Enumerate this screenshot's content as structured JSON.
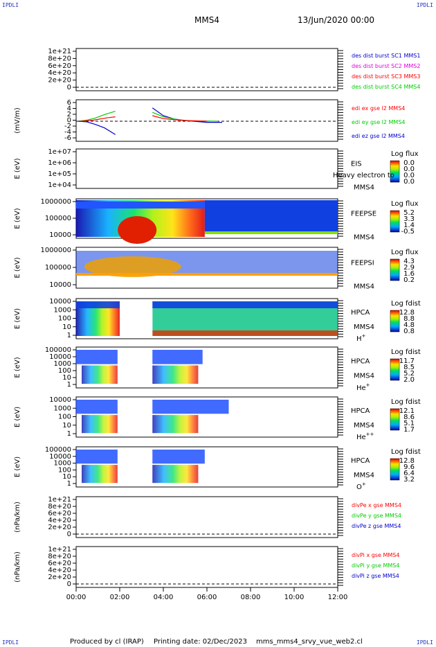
{
  "corners": {
    "tl": "IPDLI",
    "tr": "IPDLI",
    "bl": "IPDLI",
    "br": "IPDLI"
  },
  "header": {
    "spacecraft": "MMS4",
    "date": "13/Jun/2020 00:00"
  },
  "footer": {
    "produced": "Produced by cl (IRAP)",
    "printing": "Printing date: 02/Dec/2023",
    "file": "mms_mms4_srvy_vue_web2.cl"
  },
  "colors": {
    "red": "#ff0000",
    "green": "#00cc00",
    "blue": "#0000cc",
    "magenta": "#e000e0",
    "label_blue": "#0000aa"
  },
  "chart_data": {
    "type": "multi-panel time series",
    "xaxis": {
      "ticks": [
        "00:00",
        "02:00",
        "04:00",
        "06:00",
        "08:00",
        "10:00",
        "12:00"
      ],
      "range_hours": [
        0,
        12
      ]
    },
    "panels": [
      {
        "id": "des",
        "type": "line",
        "yticks": [
          "1e+21",
          "8e+20",
          "6e+20",
          "4e+20",
          "2e+20",
          "0"
        ],
        "legend": [
          {
            "text": "des dist burst SC1 MMS1",
            "color": "#0000cc"
          },
          {
            "text": "des dist burst SC2 MMS2",
            "color": "#e000e0"
          },
          {
            "text": "des dist burst SC3 MMS3",
            "color": "#ff0000"
          },
          {
            "text": "des dist burst SC4 MMS4",
            "color": "#00cc00"
          }
        ]
      },
      {
        "id": "edi",
        "type": "line",
        "ylabel": "(mV/m)",
        "yticks": [
          "6",
          "4",
          "2",
          "0",
          "-2",
          "-4",
          "-6"
        ],
        "ylim": [
          -7,
          7
        ],
        "legend": [
          {
            "text": "edi ex gse l2 MMS4",
            "color": "#ff0000"
          },
          {
            "text": "edi ey gse l2 MMS4",
            "color": "#00cc00"
          },
          {
            "text": "edi ez gse l2 MMS4",
            "color": "#0000cc"
          }
        ]
      },
      {
        "id": "eis",
        "type": "heatmap",
        "ylabel": "E (eV)",
        "yticks": [
          "1e+07",
          "1e+06",
          "1e+05",
          "1e+04"
        ],
        "labels": [
          "EIS",
          "MMS4"
        ],
        "overlay": "Heavy electron to",
        "cbar": {
          "title": "Log flux",
          "ticks": [
            "0.0",
            "0.0",
            "0.0",
            "0.0"
          ]
        }
      },
      {
        "id": "feepse",
        "type": "heatmap",
        "ylabel": "E (eV)",
        "yticks": [
          "1000000",
          "100000",
          "10000"
        ],
        "labels": [
          "FEEPSE",
          "MMS4"
        ],
        "cbar": {
          "title": "Log flux",
          "ticks": [
            "5.2",
            "3.3",
            "1.4",
            "-0.5"
          ]
        }
      },
      {
        "id": "feepsi",
        "type": "heatmap",
        "ylabel": "E (eV)",
        "yticks": [
          "1000000",
          "100000",
          "10000"
        ],
        "labels": [
          "FEEPSI",
          "MMS4"
        ],
        "cbar": {
          "title": "Log flux",
          "ticks": [
            "4.3",
            "2.9",
            "1.6",
            "0.2"
          ]
        }
      },
      {
        "id": "hpca_h",
        "type": "heatmap",
        "ylabel": "E (eV)",
        "yticks": [
          "10000",
          "1000",
          "100",
          "10",
          "1"
        ],
        "labels": [
          "HPCA",
          "MMS4"
        ],
        "species": "H",
        "charge": "+",
        "cbar": {
          "title": "Log fdist",
          "ticks": [
            "12.8",
            "8.8",
            "4.8",
            "0.8"
          ]
        }
      },
      {
        "id": "hpca_he",
        "type": "heatmap",
        "ylabel": "E (eV)",
        "yticks": [
          "100000",
          "10000",
          "1000",
          "100",
          "10",
          "1"
        ],
        "labels": [
          "HPCA",
          "MMS4"
        ],
        "species": "He",
        "charge": "+",
        "cbar": {
          "title": "Log fdist",
          "ticks": [
            "11.7",
            "8.5",
            "5.2",
            "2.0"
          ]
        }
      },
      {
        "id": "hpca_hepp",
        "type": "heatmap",
        "ylabel": "E (eV)",
        "yticks": [
          "10000",
          "1000",
          "100",
          "10",
          "1"
        ],
        "labels": [
          "HPCA",
          "MMS4"
        ],
        "species": "He",
        "charge": "++",
        "cbar": {
          "title": "Log fdist",
          "ticks": [
            "12.1",
            "8.6",
            "5.1",
            "1.7"
          ]
        }
      },
      {
        "id": "hpca_o",
        "type": "heatmap",
        "ylabel": "E (eV)",
        "yticks": [
          "100000",
          "10000",
          "1000",
          "100",
          "10",
          "1"
        ],
        "labels": [
          "HPCA",
          "MMS4"
        ],
        "species": "O",
        "charge": "+",
        "cbar": {
          "title": "Log fdist",
          "ticks": [
            "12.8",
            "9.6",
            "6.4",
            "3.2"
          ]
        }
      },
      {
        "id": "divpe",
        "type": "line",
        "ylabel": "(nPa/km)",
        "yticks": [
          "1e+21",
          "8e+20",
          "6e+20",
          "4e+20",
          "2e+20",
          "0"
        ],
        "legend": [
          {
            "text": "divPe x gse MMS4",
            "color": "#ff0000"
          },
          {
            "text": "divPe y gse MMS4",
            "color": "#00cc00"
          },
          {
            "text": "divPe z gse MMS4",
            "color": "#0000cc"
          }
        ]
      },
      {
        "id": "divpi",
        "type": "line",
        "ylabel": "(nPa/km)",
        "yticks": [
          "1e+21",
          "8e+20",
          "6e+20",
          "4e+20",
          "2e+20",
          "0"
        ],
        "legend": [
          {
            "text": "divPi x gse MMS4",
            "color": "#ff0000"
          },
          {
            "text": "divPi y gse MMS4",
            "color": "#00cc00"
          },
          {
            "text": "divPi z gse MMS4",
            "color": "#0000cc"
          }
        ]
      }
    ]
  }
}
